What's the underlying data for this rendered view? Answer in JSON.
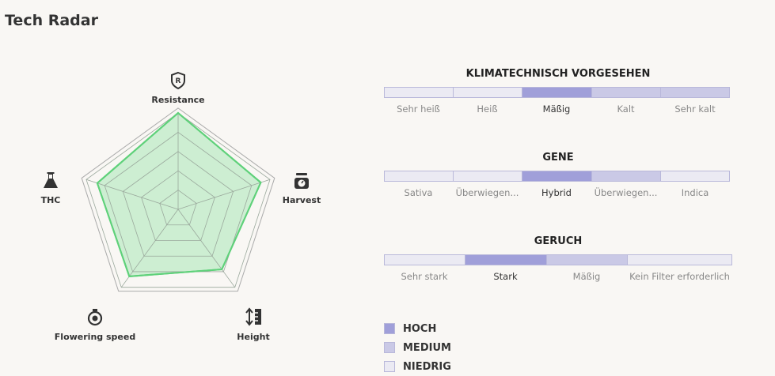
{
  "page": {
    "title": "Tech Radar"
  },
  "chart_data": [
    {
      "type": "radar",
      "title": "",
      "axes": [
        {
          "name": "Resistance",
          "icon": "shield-r-icon"
        },
        {
          "name": "Harvest",
          "icon": "scale-icon"
        },
        {
          "name": "Height",
          "icon": "height-ruler-icon"
        },
        {
          "name": "Flowering speed",
          "icon": "stopwatch-icon"
        },
        {
          "name": "THC",
          "icon": "flask-icon"
        }
      ],
      "series": [
        {
          "name": "",
          "values": [
            1.0,
            0.9,
            0.77,
            0.86,
            0.88
          ],
          "color": "#5fd17a"
        }
      ],
      "range": [
        0,
        1
      ],
      "rings": 5
    },
    {
      "type": "scale",
      "title": "KLIMATECHNISCH VORGESEHEN",
      "categories": [
        "Sehr heiß",
        "Heiß",
        "Mäßig",
        "Kalt",
        "Sehr kalt"
      ],
      "levels": [
        "NIEDRIG",
        "NIEDRIG",
        "HOCH",
        "MEDIUM",
        "MEDIUM"
      ]
    },
    {
      "type": "scale",
      "title": "GENE",
      "categories": [
        "Sativa",
        "Überwiegen...",
        "Hybrid",
        "Überwiegen...",
        "Indica"
      ],
      "levels": [
        "NIEDRIG",
        "NIEDRIG",
        "HOCH",
        "MEDIUM",
        "NIEDRIG"
      ]
    },
    {
      "type": "scale",
      "title": "GERUCH",
      "categories": [
        "Sehr stark",
        "Stark",
        "Mäßig",
        "Kein Filter erforderlich"
      ],
      "levels": [
        "NIEDRIG",
        "HOCH",
        "MEDIUM",
        "NIEDRIG"
      ]
    }
  ],
  "legend": [
    {
      "label": "HOCH",
      "color": "#a09fd9"
    },
    {
      "label": "MEDIUM",
      "color": "#cac9e6"
    },
    {
      "label": "NIEDRIG",
      "color": "#ebeaf3"
    }
  ]
}
